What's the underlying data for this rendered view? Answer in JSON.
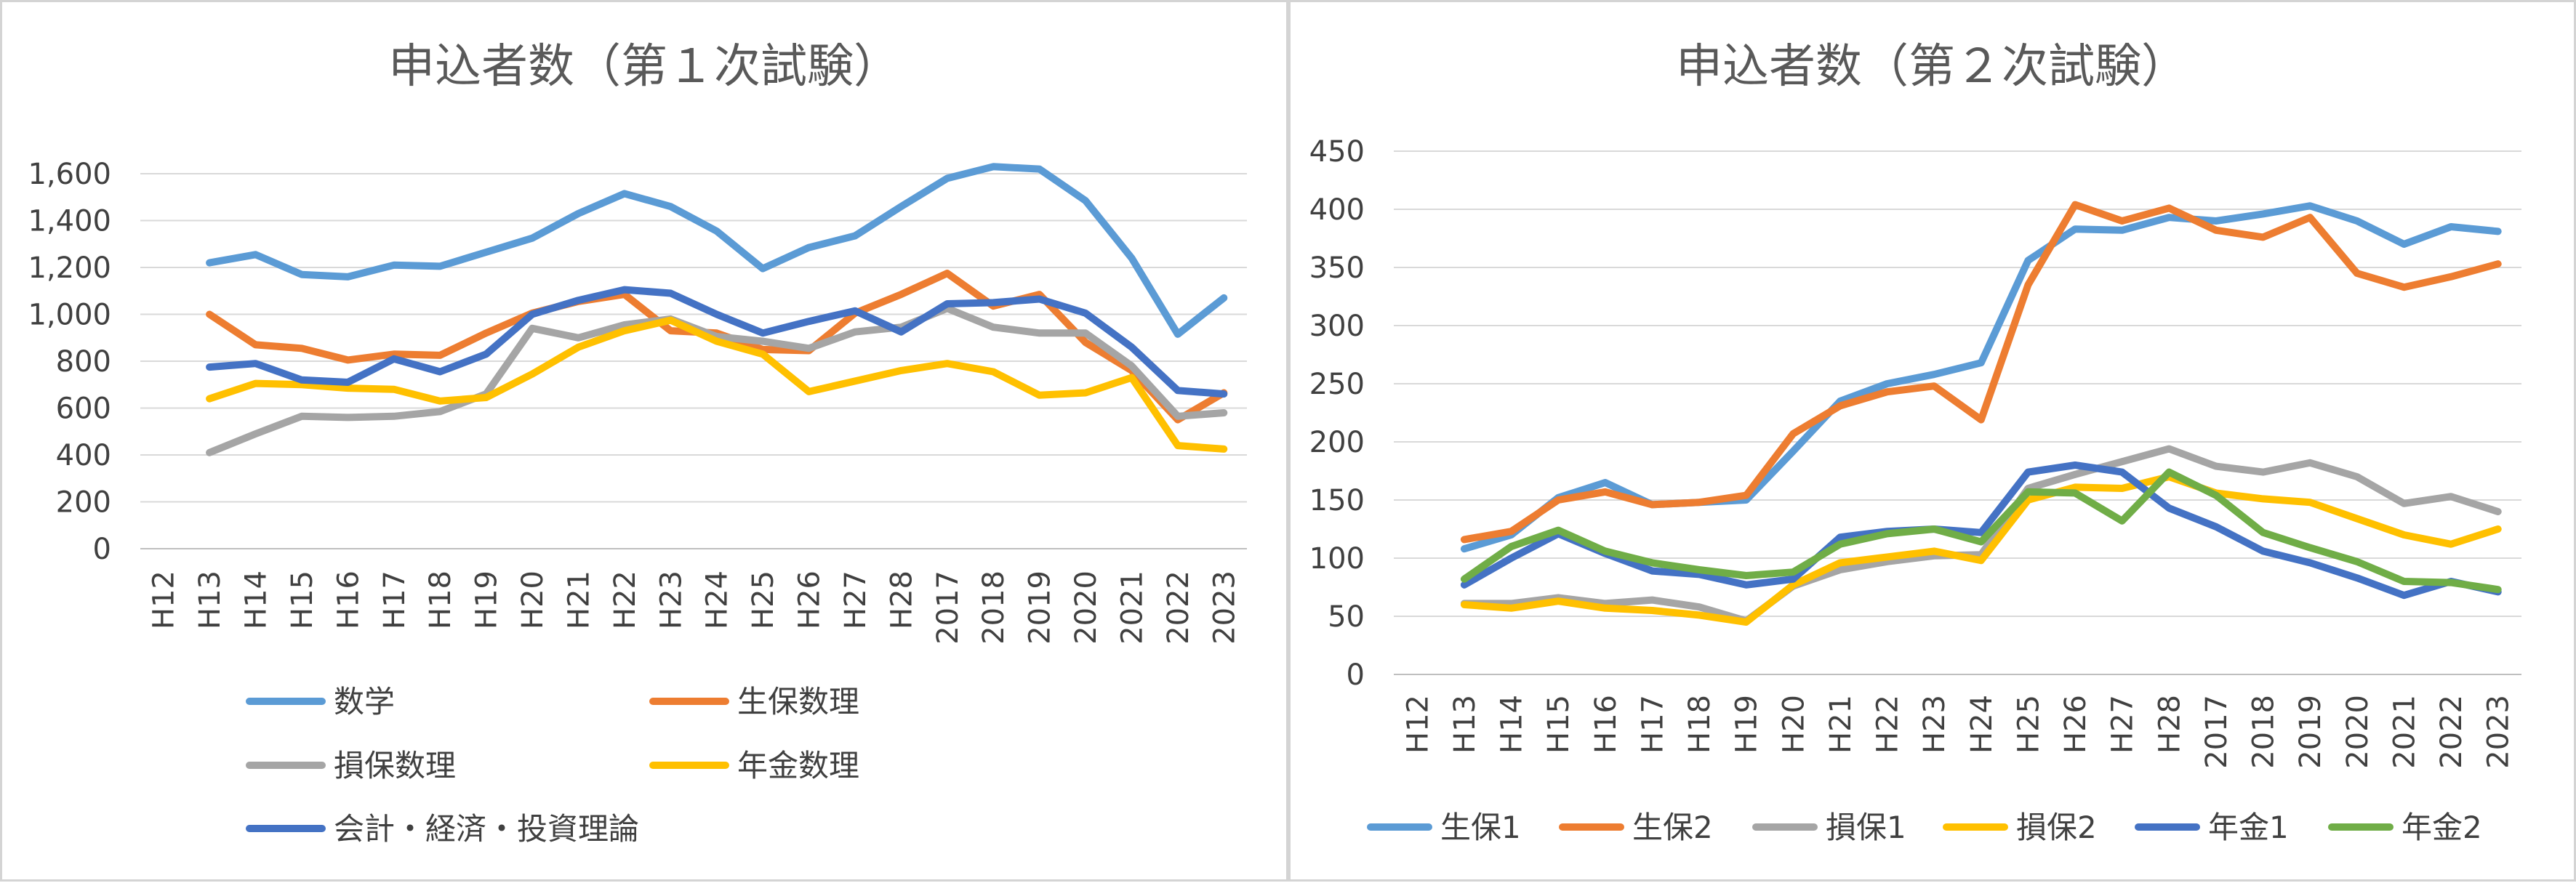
{
  "chart_data": [
    {
      "type": "line",
      "title": "申込者数（第１次試験）",
      "categories": [
        "H12",
        "H13",
        "H14",
        "H15",
        "H16",
        "H17",
        "H18",
        "H19",
        "H20",
        "H21",
        "H22",
        "H23",
        "H24",
        "H25",
        "H26",
        "H27",
        "H28",
        "2017",
        "2018",
        "2019",
        "2020",
        "2021",
        "2022",
        "2023"
      ],
      "ylim": [
        0,
        1600
      ],
      "yticks": [
        0,
        200,
        400,
        600,
        800,
        1000,
        1200,
        1400,
        1600
      ],
      "ytick_labels": [
        "0",
        "200",
        "400",
        "600",
        "800",
        "1,000",
        "1,200",
        "1,400",
        "1,600"
      ],
      "grid": true,
      "legend_position": "bottom",
      "series": [
        {
          "name": "数学",
          "color": "#5B9BD5",
          "values": [
            null,
            1220,
            1255,
            1170,
            1160,
            1210,
            1205,
            1265,
            1325,
            1430,
            1515,
            1460,
            1355,
            1195,
            1285,
            1335,
            1460,
            1580,
            1630,
            1620,
            1485,
            1240,
            915,
            1070
          ]
        },
        {
          "name": "生保数理",
          "color": "#ED7D31",
          "values": [
            null,
            1000,
            870,
            855,
            805,
            830,
            825,
            920,
            1005,
            1055,
            1085,
            930,
            920,
            850,
            845,
            1005,
            1085,
            1175,
            1035,
            1085,
            880,
            760,
            550,
            665
          ]
        },
        {
          "name": "損保数理",
          "color": "#A5A5A5",
          "values": [
            null,
            410,
            490,
            565,
            560,
            565,
            585,
            660,
            940,
            900,
            955,
            980,
            905,
            885,
            855,
            925,
            945,
            1025,
            945,
            920,
            920,
            780,
            565,
            580
          ]
        },
        {
          "name": "年金数理",
          "color": "#FFC000",
          "values": [
            null,
            640,
            705,
            700,
            685,
            680,
            630,
            645,
            745,
            860,
            930,
            975,
            885,
            830,
            670,
            715,
            760,
            790,
            755,
            655,
            665,
            730,
            440,
            425
          ]
        },
        {
          "name": "会計・経済・投資理論",
          "color": "#4472C4",
          "values": [
            null,
            775,
            790,
            720,
            710,
            810,
            755,
            830,
            1000,
            1060,
            1105,
            1090,
            1000,
            920,
            970,
            1015,
            925,
            1045,
            1050,
            1065,
            1005,
            860,
            675,
            660
          ]
        }
      ]
    },
    {
      "type": "line",
      "title": "申込者数（第２次試験）",
      "categories": [
        "H12",
        "H13",
        "H14",
        "H15",
        "H16",
        "H17",
        "H18",
        "H19",
        "H20",
        "H21",
        "H22",
        "H23",
        "H24",
        "H25",
        "H26",
        "H27",
        "H28",
        "2017",
        "2018",
        "2019",
        "2020",
        "2021",
        "2022",
        "2023"
      ],
      "ylim": [
        0,
        450
      ],
      "yticks": [
        0,
        50,
        100,
        150,
        200,
        250,
        300,
        350,
        400,
        450
      ],
      "ytick_labels": [
        "0",
        "50",
        "100",
        "150",
        "200",
        "250",
        "300",
        "350",
        "400",
        "450"
      ],
      "grid": true,
      "legend_position": "bottom",
      "series": [
        {
          "name": "生保1",
          "color": "#5B9BD5",
          "values": [
            null,
            108,
            120,
            152,
            165,
            146,
            148,
            150,
            192,
            235,
            250,
            258,
            268,
            356,
            383,
            382,
            393,
            390,
            396,
            403,
            390,
            370,
            385,
            381
          ]
        },
        {
          "name": "生保2",
          "color": "#ED7D31",
          "values": [
            null,
            116,
            123,
            150,
            157,
            146,
            148,
            154,
            207,
            231,
            243,
            248,
            219,
            335,
            404,
            390,
            401,
            382,
            376,
            393,
            345,
            333,
            342,
            353
          ]
        },
        {
          "name": "損保1",
          "color": "#A5A5A5",
          "values": [
            null,
            61,
            61,
            66,
            61,
            64,
            58,
            46,
            76,
            90,
            97,
            102,
            103,
            160,
            172,
            183,
            194,
            179,
            174,
            182,
            170,
            147,
            153,
            140
          ]
        },
        {
          "name": "損保2",
          "color": "#FFC000",
          "values": [
            null,
            60,
            57,
            63,
            57,
            55,
            51,
            45,
            77,
            96,
            101,
            106,
            98,
            150,
            161,
            160,
            170,
            156,
            151,
            148,
            134,
            120,
            112,
            125
          ]
        },
        {
          "name": "年金1",
          "color": "#4472C4",
          "values": [
            null,
            77,
            100,
            121,
            104,
            89,
            86,
            77,
            82,
            118,
            123,
            125,
            122,
            174,
            180,
            174,
            143,
            127,
            106,
            96,
            83,
            68,
            80,
            71
          ]
        },
        {
          "name": "年金2",
          "color": "#70AD47",
          "values": [
            null,
            82,
            110,
            124,
            106,
            96,
            90,
            85,
            88,
            112,
            121,
            125,
            114,
            157,
            156,
            132,
            174,
            154,
            122,
            109,
            97,
            80,
            79,
            73
          ]
        }
      ]
    }
  ]
}
